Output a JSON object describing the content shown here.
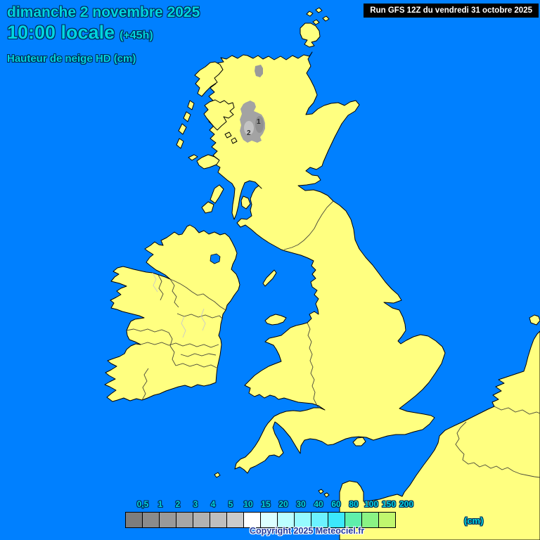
{
  "header": {
    "date_line": "dimanche 2 novembre 2025",
    "time_line": "10:00 locale",
    "time_offset": "(+45h)",
    "variable_line": "Hauteur de neige HD (cm)"
  },
  "run_info": {
    "label": "Run GFS 12Z du vendredi 31 octobre 2025"
  },
  "legend": {
    "unit_label": "(cm)",
    "values": [
      "0,5",
      "1",
      "2",
      "3",
      "4",
      "5",
      "10",
      "15",
      "20",
      "30",
      "40",
      "60",
      "80",
      "100",
      "150",
      "200"
    ],
    "colors": [
      "#7d7d7d",
      "#8b8b8b",
      "#999999",
      "#a6a6a6",
      "#b2b2b2",
      "#bebebe",
      "#cbcbcb",
      "#ffffff",
      "#dcffff",
      "#bcffff",
      "#96faff",
      "#6cf2ff",
      "#3ce8fc",
      "#5eefab",
      "#8af384",
      "#c0f76e"
    ]
  },
  "copyright": "Copyright 2025 Meteociel.fr",
  "map": {
    "sea_color": "#0080ff",
    "land_color": "#ffff80",
    "accent_text_color": "#00d5e0",
    "snow_labels": [
      {
        "text": "1"
      },
      {
        "text": "2"
      }
    ]
  }
}
